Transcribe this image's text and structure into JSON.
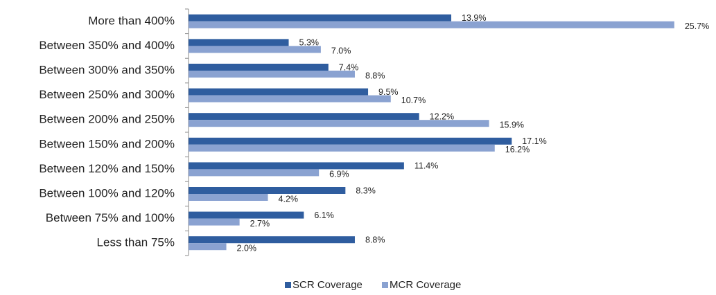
{
  "chart_data": {
    "type": "bar",
    "orientation": "horizontal",
    "categories": [
      "More than 400%",
      "Between 350% and 400%",
      "Between 300% and 350%",
      "Between 250% and 300%",
      "Between 200% and 250%",
      "Between 150% and 200%",
      "Between 120% and 150%",
      "Between 100% and 120%",
      "Between 75% and 100%",
      "Less than 75%"
    ],
    "series": [
      {
        "name": "SCR Coverage",
        "color": "#2f5d9f",
        "values": [
          13.9,
          5.3,
          7.4,
          9.5,
          12.2,
          17.1,
          11.4,
          8.3,
          6.1,
          8.8
        ],
        "value_labels": [
          "13.9%",
          "5.3%",
          "7.4%",
          "9.5%",
          "12.2%",
          "17.1%",
          "11.4%",
          "8.3%",
          "6.1%",
          "8.8%"
        ]
      },
      {
        "name": "MCR Coverage",
        "color": "#8aa2d1",
        "values": [
          25.7,
          7.0,
          8.8,
          10.7,
          15.9,
          16.2,
          6.9,
          4.2,
          2.7,
          2.0
        ],
        "value_labels": [
          "25.7%",
          "7.0%",
          "8.8%",
          "10.7%",
          "15.9%",
          "16.2%",
          "6.9%",
          "4.2%",
          "2.7%",
          "2.0%"
        ]
      }
    ],
    "xlim": [
      0,
      26
    ],
    "legend": "bottom"
  }
}
